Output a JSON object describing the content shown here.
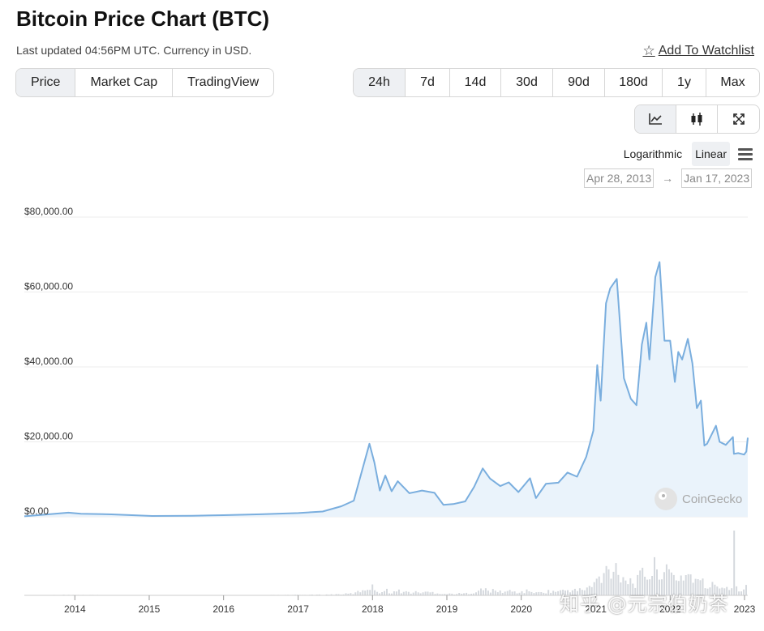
{
  "page": {
    "title": "Bitcoin Price Chart (BTC)",
    "subtitle": "Last updated 04:56PM UTC. Currency in USD.",
    "watchlist_label": "Add To Watchlist"
  },
  "tabs": [
    {
      "label": "Price",
      "active": true
    },
    {
      "label": "Market Cap",
      "active": false
    },
    {
      "label": "TradingView",
      "active": false
    }
  ],
  "ranges": [
    {
      "label": "24h",
      "active": true
    },
    {
      "label": "7d",
      "active": false
    },
    {
      "label": "14d",
      "active": false
    },
    {
      "label": "30d",
      "active": false
    },
    {
      "label": "90d",
      "active": false
    },
    {
      "label": "180d",
      "active": false
    },
    {
      "label": "1y",
      "active": false
    },
    {
      "label": "Max",
      "active": false
    }
  ],
  "chart_type_buttons": [
    {
      "icon": "line-chart-icon",
      "active": true
    },
    {
      "icon": "candlestick-icon",
      "active": false
    },
    {
      "icon": "expand-icon",
      "active": false
    }
  ],
  "scale": {
    "log_label": "Logarithmic",
    "linear_label": "Linear",
    "selected": "Linear"
  },
  "date_range": {
    "from": "Apr 28, 2013",
    "arrow": "→",
    "to": "Jan 17, 2023"
  },
  "brand": "CoinGecko",
  "watermark": "知乎 @元宗伯奶茶",
  "colors": {
    "line": "#7aaede",
    "area": "#eaf3fb",
    "volume": "#d5d9de",
    "grid": "#ececec"
  },
  "chart_data": {
    "type": "line",
    "title": "",
    "xlabel": "",
    "ylabel": "",
    "ylim": [
      0,
      80000
    ],
    "xlim": [
      "2013-04-28",
      "2023-01-17"
    ],
    "y_ticks": [
      "$0.00",
      "$20,000.00",
      "$40,000.00",
      "$60,000.00",
      "$80,000.00"
    ],
    "y_tick_values": [
      0,
      20000,
      40000,
      60000,
      80000
    ],
    "x_ticks": [
      "2014",
      "2015",
      "2016",
      "2017",
      "2018",
      "2019",
      "2020",
      "2021",
      "2022",
      "2023"
    ],
    "x_tick_dates": [
      "2014-01-01",
      "2015-01-01",
      "2016-01-01",
      "2017-01-01",
      "2018-01-01",
      "2019-01-01",
      "2020-01-01",
      "2021-01-01",
      "2022-01-01",
      "2023-01-01"
    ],
    "grid": true,
    "legend": "none",
    "series": [
      {
        "dates": [
          "2013-04-28",
          "2013-11-30",
          "2014-01-31",
          "2014-06-30",
          "2015-01-15",
          "2015-08-01",
          "2016-01-01",
          "2016-07-01",
          "2017-01-01",
          "2017-05-01",
          "2017-08-01",
          "2017-10-01",
          "2017-12-17",
          "2018-01-10",
          "2018-02-06",
          "2018-03-05",
          "2018-04-05",
          "2018-05-05",
          "2018-07-01",
          "2018-09-01",
          "2018-11-01",
          "2018-12-15",
          "2019-02-01",
          "2019-04-01",
          "2019-05-15",
          "2019-06-26",
          "2019-08-01",
          "2019-09-20",
          "2019-11-01",
          "2019-12-18",
          "2020-02-13",
          "2020-03-13",
          "2020-05-01",
          "2020-07-01",
          "2020-08-15",
          "2020-10-01",
          "2020-11-15",
          "2020-12-20",
          "2021-01-08",
          "2021-01-25",
          "2021-02-20",
          "2021-03-13",
          "2021-04-14",
          "2021-05-19",
          "2021-06-22",
          "2021-07-20",
          "2021-08-15",
          "2021-09-06",
          "2021-09-21",
          "2021-10-20",
          "2021-11-10",
          "2021-12-04",
          "2022-01-01",
          "2022-01-24",
          "2022-02-10",
          "2022-03-01",
          "2022-03-29",
          "2022-04-20",
          "2022-05-12",
          "2022-06-01",
          "2022-06-18",
          "2022-07-01",
          "2022-08-14",
          "2022-09-01",
          "2022-10-01",
          "2022-11-05",
          "2022-11-10",
          "2022-12-01",
          "2022-12-30",
          "2023-01-10",
          "2023-01-17"
        ],
        "values": [
          135,
          1100,
          830,
          640,
          210,
          280,
          430,
          660,
          1000,
          1400,
          2800,
          4300,
          19500,
          14500,
          7000,
          11000,
          6800,
          9500,
          6300,
          7000,
          6400,
          3200,
          3400,
          4100,
          8000,
          12900,
          10200,
          8200,
          9200,
          6600,
          10300,
          5000,
          8800,
          9100,
          11800,
          10700,
          16000,
          23000,
          40500,
          31000,
          57000,
          61000,
          63500,
          37000,
          31500,
          29800,
          46000,
          51800,
          42000,
          64000,
          68000,
          47000,
          47000,
          36000,
          44000,
          42000,
          47500,
          41000,
          29000,
          31000,
          19000,
          19500,
          24300,
          20000,
          19200,
          21300,
          16800,
          17000,
          16600,
          17400,
          21100
        ]
      }
    ]
  }
}
